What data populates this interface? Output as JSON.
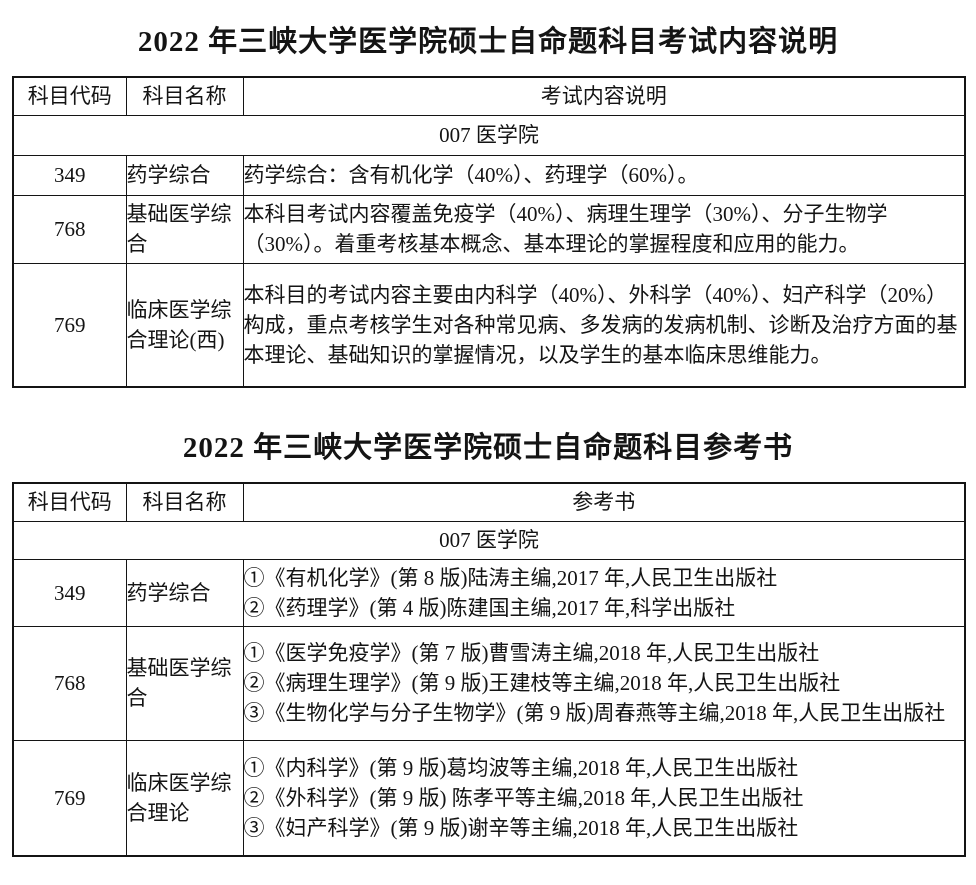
{
  "page": {
    "background": "#ffffff",
    "text_color": "#141414",
    "border_color": "#141414"
  },
  "table1": {
    "title": "2022 年三峡大学医学院硕士自命题科目考试内容说明",
    "headers": [
      "科目代码",
      "科目名称",
      "考试内容说明"
    ],
    "group_row": "007 医学院",
    "rows": [
      {
        "code": "349",
        "name": "药学综合",
        "content": "药学综合：含有机化学（40%）、药理学（60%）。"
      },
      {
        "code": "768",
        "name": "基础医学综合",
        "content": "本科目考试内容覆盖免疫学（40%）、病理生理学（30%）、分子生物学（30%）。着重考核基本概念、基本理论的掌握程度和应用的能力。"
      },
      {
        "code": "769",
        "name": "临床医学综合理论(西)",
        "content": "本科目的考试内容主要由内科学（40%）、外科学（40%）、妇产科学（20%）构成，重点考核学生对各种常见病、多发病的发病机制、诊断及治疗方面的基本理论、基础知识的掌握情况，以及学生的基本临床思维能力。"
      }
    ]
  },
  "table2": {
    "title": "2022 年三峡大学医学院硕士自命题科目参考书",
    "headers": [
      "科目代码",
      "科目名称",
      "参考书"
    ],
    "group_row": "007 医学院",
    "rows": [
      {
        "code": "349",
        "name": "药学综合",
        "books": [
          "①《有机化学》(第 8 版)陆涛主编,2017 年,人民卫生出版社",
          "②《药理学》(第 4 版)陈建国主编,2017 年,科学出版社"
        ]
      },
      {
        "code": "768",
        "name": "基础医学综合",
        "books": [
          "①《医学免疫学》(第 7 版)曹雪涛主编,2018 年,人民卫生出版社",
          "②《病理生理学》(第 9 版)王建枝等主编,2018 年,人民卫生出版社",
          "③《生物化学与分子生物学》(第 9 版)周春燕等主编,2018 年,人民卫生出版社"
        ]
      },
      {
        "code": "769",
        "name": "临床医学综合理论",
        "books": [
          "①《内科学》(第 9 版)葛均波等主编,2018 年,人民卫生出版社",
          "②《外科学》(第 9 版) 陈孝平等主编,2018 年,人民卫生出版社",
          "③《妇产科学》(第 9 版)谢辛等主编,2018 年,人民卫生出版社"
        ]
      }
    ]
  }
}
